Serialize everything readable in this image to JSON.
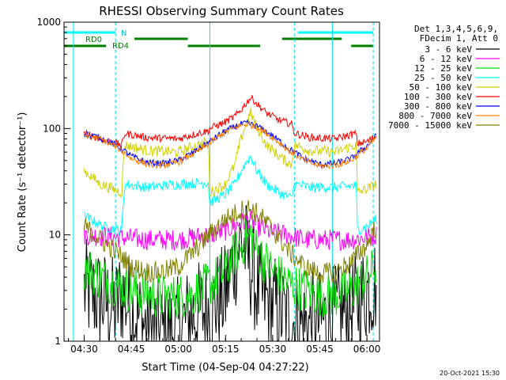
{
  "chart_data": {
    "type": "line",
    "title": "RHESSI Observing Summary Count Rates",
    "xlabel": "Start Time (04-Sep-04 04:27:22)",
    "ylabel": "Count Rate (s⁻¹ detector⁻¹)",
    "yscale": "log",
    "ylim": [
      1,
      1000
    ],
    "xlim_minutes": [
      -6.4,
      94
    ],
    "xticks": [
      "04:30",
      "04:45",
      "05:00",
      "05:15",
      "05:30",
      "05:45",
      "06:00"
    ],
    "yticks": [
      "1",
      "10",
      "100",
      "1000"
    ],
    "legend_header": [
      "Det 1,3,4,5,6,9,",
      "FDecim 1, Att 0"
    ],
    "footer_date": "20-Oct-2021 15:30",
    "state_labels": [
      "N",
      "RD0",
      "RD4"
    ],
    "night_start_times": [
      "04:40",
      "05:37",
      "06:02"
    ],
    "night_end_times": [
      "04:27",
      "05:10",
      "05:49"
    ],
    "series": [
      {
        "name": "3 - 6 keV",
        "color": "#000000",
        "noise": 0.5,
        "x": [
          0,
          5,
          10,
          12,
          15,
          20,
          25,
          30,
          35,
          40,
          45,
          48,
          50,
          53,
          55,
          57,
          60,
          65,
          70,
          75,
          80,
          85,
          88,
          90,
          93
        ],
        "y": [
          3,
          2.5,
          2,
          2.8,
          2,
          1.3,
          1.2,
          1.3,
          1.8,
          2,
          2.7,
          6,
          9,
          5,
          3,
          2.5,
          2.2,
          1.6,
          1.4,
          1.5,
          1.7,
          2,
          2.5,
          3,
          3.5
        ]
      },
      {
        "name": "6 - 12 keV",
        "color": "#ff00ff",
        "noise": 0.1,
        "x": [
          0,
          10,
          20,
          30,
          35,
          40,
          45,
          50,
          53,
          55,
          60,
          65,
          70,
          80,
          85,
          90,
          93
        ],
        "y": [
          10,
          9.5,
          9,
          9,
          9.5,
          10,
          11,
          13,
          14,
          12,
          10.5,
          10,
          9,
          9,
          9,
          9.5,
          10
        ]
      },
      {
        "name": "12 - 25 keV",
        "color": "#00e000",
        "noise": 0.22,
        "x": [
          0,
          5,
          10,
          15,
          20,
          25,
          30,
          35,
          40,
          45,
          50,
          53,
          55,
          60,
          65,
          70,
          75,
          80,
          85,
          90,
          93
        ],
        "y": [
          5,
          4,
          3.5,
          3,
          2.8,
          2.6,
          2.6,
          2.8,
          3.5,
          4.5,
          8,
          10,
          7,
          4.5,
          3.5,
          3,
          2.8,
          2.7,
          3,
          4,
          5
        ]
      },
      {
        "name": "25 - 50 keV",
        "color": "#00ffff",
        "noise": 0.05,
        "x": [
          0,
          6,
          12,
          13,
          20,
          30,
          39.5,
          40,
          45,
          48,
          50,
          52,
          53,
          55,
          58,
          62,
          66,
          67,
          72,
          80,
          86.5,
          87,
          90,
          93
        ],
        "y": [
          15,
          12,
          11,
          30,
          28,
          30,
          31,
          20,
          24,
          30,
          40,
          50,
          55,
          40,
          30,
          25,
          22,
          30,
          28,
          28,
          29,
          11,
          12,
          14
        ]
      },
      {
        "name": "50 - 100 keV",
        "color": "#d0d000",
        "noise": 0.05,
        "x": [
          0,
          5,
          12,
          13,
          20,
          30,
          39.5,
          40,
          45,
          48,
          50,
          52,
          53,
          55,
          58,
          62,
          66,
          67,
          72,
          80,
          86.5,
          87,
          90,
          93
        ],
        "y": [
          40,
          30,
          25,
          70,
          62,
          60,
          75,
          25,
          30,
          45,
          80,
          120,
          140,
          100,
          70,
          55,
          45,
          70,
          62,
          60,
          70,
          25,
          27,
          30
        ]
      },
      {
        "name": "100 - 300 keV",
        "color": "#ff0000",
        "noise": 0.035,
        "x": [
          0,
          5,
          12,
          13,
          20,
          30,
          39.5,
          40,
          45,
          48,
          50,
          52,
          53,
          54,
          55,
          58,
          62,
          66,
          67,
          72,
          80,
          86.5,
          87,
          90,
          93
        ],
        "y": [
          90,
          80,
          70,
          90,
          82,
          80,
          95,
          100,
          115,
          130,
          150,
          180,
          195,
          185,
          170,
          140,
          120,
          110,
          90,
          82,
          80,
          90,
          72,
          75,
          85
        ]
      },
      {
        "name": "300 - 800 keV",
        "color": "#0000ff",
        "noise": 0.03,
        "x": [
          0,
          5,
          10,
          15,
          20,
          25,
          30,
          35,
          40,
          45,
          50,
          52,
          55,
          60,
          65,
          70,
          75,
          80,
          85,
          90,
          93
        ],
        "y": [
          90,
          82,
          70,
          55,
          48,
          47,
          50,
          60,
          75,
          95,
          110,
          112,
          105,
          85,
          65,
          52,
          46,
          47,
          52,
          68,
          85
        ]
      },
      {
        "name": "800 - 7000 keV",
        "color": "#ff8000",
        "noise": 0.03,
        "x": [
          0,
          5,
          10,
          15,
          20,
          25,
          30,
          35,
          40,
          45,
          50,
          52,
          55,
          60,
          65,
          70,
          75,
          80,
          85,
          90,
          93
        ],
        "y": [
          88,
          80,
          68,
          52,
          46,
          45,
          48,
          58,
          73,
          92,
          108,
          110,
          103,
          82,
          62,
          50,
          44,
          45,
          50,
          65,
          82
        ]
      },
      {
        "name": "7000 - 15000 keV",
        "color": "#808000",
        "noise": 0.1,
        "x": [
          0,
          5,
          10,
          15,
          20,
          25,
          30,
          35,
          40,
          45,
          50,
          52,
          55,
          60,
          65,
          70,
          75,
          80,
          85,
          90,
          93
        ],
        "y": [
          12,
          9,
          7,
          5,
          4.5,
          4.5,
          5,
          7,
          10,
          14,
          17,
          18,
          16,
          11,
          7,
          5,
          4.3,
          4.5,
          5.5,
          8,
          12
        ]
      }
    ]
  }
}
